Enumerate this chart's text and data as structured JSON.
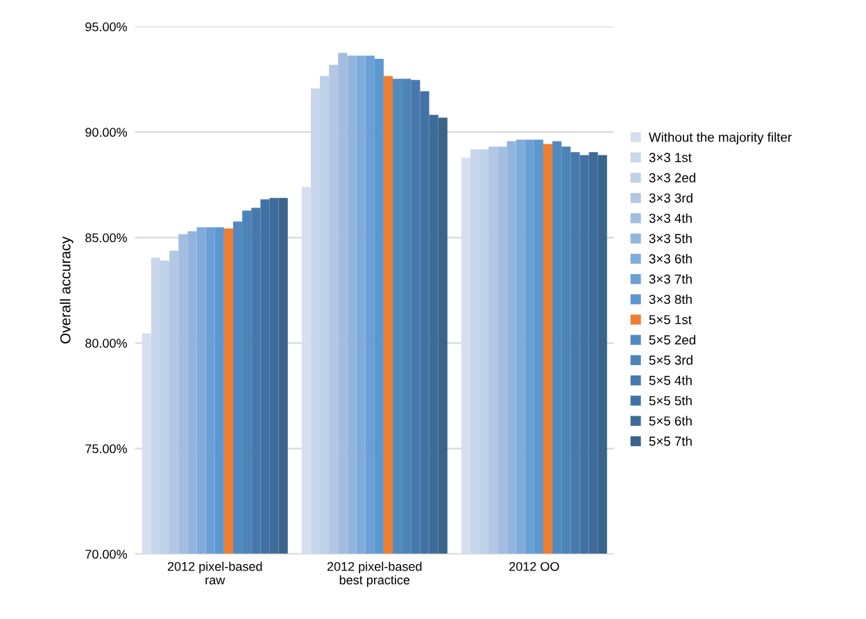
{
  "chart_data": {
    "type": "bar",
    "ylabel": "Overall accuracy",
    "categories": [
      "2012 pixel-based\nraw",
      "2012 pixel-based\nbest practice",
      "2012 OO"
    ],
    "ylim": [
      70,
      95
    ],
    "yticks": [
      {
        "value": 70,
        "label": "70.00%"
      },
      {
        "value": 75,
        "label": "75.00%"
      },
      {
        "value": 80,
        "label": "80.00%"
      },
      {
        "value": 85,
        "label": "85.00%"
      },
      {
        "value": 90,
        "label": "90.00%"
      },
      {
        "value": 95,
        "label": "95.00%"
      }
    ],
    "grid": "y",
    "legend": "right",
    "series": [
      {
        "name": "Without the majority filter",
        "color": "#d6dff0",
        "values": [
          80.46,
          87.4,
          88.78
        ]
      },
      {
        "name": "3×3 1st",
        "color": "#c9d7ec",
        "values": [
          84.05,
          92.07,
          89.18
        ]
      },
      {
        "name": "3×3 2ed",
        "color": "#bed1e8",
        "values": [
          83.91,
          92.66,
          89.18
        ]
      },
      {
        "name": "3×3 3rd",
        "color": "#b2c7e4",
        "values": [
          84.38,
          93.19,
          89.31
        ]
      },
      {
        "name": "3×3 4th",
        "color": "#a3bde1",
        "values": [
          85.16,
          93.75,
          89.31
        ]
      },
      {
        "name": "3×3 5th",
        "color": "#93b5dd",
        "values": [
          85.3,
          93.62,
          89.57
        ]
      },
      {
        "name": "3×3 6th",
        "color": "#80acdb",
        "values": [
          85.49,
          93.62,
          89.64
        ]
      },
      {
        "name": "3×3 7th",
        "color": "#6aa0d5",
        "values": [
          85.49,
          93.62,
          89.64
        ]
      },
      {
        "name": "3×3 8th",
        "color": "#5b98d0",
        "values": [
          85.49,
          93.47,
          89.64
        ]
      },
      {
        "name": "5×5 1st",
        "color": "#ed7d31",
        "values": [
          85.43,
          92.66,
          89.44
        ]
      },
      {
        "name": "5×5 2ed",
        "color": "#5289c0",
        "values": [
          85.76,
          92.53,
          89.57
        ]
      },
      {
        "name": "5×5 3rd",
        "color": "#4c84b8",
        "values": [
          86.28,
          92.53,
          89.31
        ]
      },
      {
        "name": "5×5 4th",
        "color": "#4779ad",
        "values": [
          86.41,
          92.47,
          89.05
        ]
      },
      {
        "name": "5×5 5th",
        "color": "#4272a5",
        "values": [
          86.81,
          91.94,
          88.91
        ]
      },
      {
        "name": "5×5 6th",
        "color": "#3e6b99",
        "values": [
          86.88,
          90.82,
          89.05
        ]
      },
      {
        "name": "5×5 7th",
        "color": "#3a6489",
        "values": [
          86.88,
          90.69,
          88.91
        ]
      }
    ]
  }
}
